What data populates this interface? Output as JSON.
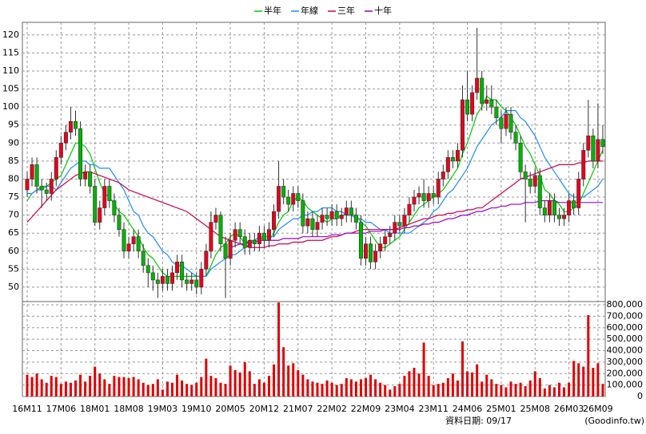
{
  "chart_data": {
    "type": "candlestick",
    "categories": [
      "16M11",
      null,
      null,
      null,
      null,
      null,
      null,
      "17M06",
      null,
      null,
      null,
      null,
      null,
      null,
      "18M01",
      null,
      null,
      null,
      null,
      null,
      null,
      "18M08",
      null,
      null,
      null,
      null,
      null,
      null,
      "19M03",
      null,
      null,
      null,
      null,
      null,
      null,
      "19M10",
      null,
      null,
      null,
      null,
      null,
      null,
      "20M05",
      null,
      null,
      null,
      null,
      null,
      null,
      "20M12",
      null,
      null,
      null,
      null,
      null,
      null,
      "21M07",
      null,
      null,
      null,
      null,
      null,
      null,
      "22M02",
      null,
      null,
      null,
      null,
      null,
      null,
      "22M09",
      null,
      null,
      null,
      null,
      null,
      null,
      "23M04",
      null,
      null,
      null,
      null,
      null,
      null,
      "23M11",
      null,
      null,
      null,
      null,
      null,
      null,
      "24M06",
      null,
      null,
      null,
      null,
      null,
      null,
      "25M01",
      null,
      null,
      null,
      null,
      null,
      null,
      "25M08",
      null,
      null,
      null,
      null,
      null,
      null,
      "26M03",
      null,
      null,
      null,
      null,
      null,
      "26M09",
      null
    ],
    "open": [
      77,
      80,
      84,
      78,
      77,
      76,
      80,
      86,
      90,
      93,
      96,
      94,
      80,
      82,
      78,
      68,
      72,
      78,
      74,
      70,
      66,
      60,
      62,
      64,
      60,
      56,
      54,
      52,
      51,
      53,
      51,
      54,
      57,
      52,
      51,
      52,
      50,
      55,
      60,
      68,
      70,
      62,
      58,
      63,
      66,
      64,
      61,
      63,
      62,
      65,
      63,
      66,
      71,
      78,
      75,
      73,
      76,
      74,
      67,
      69,
      66,
      68,
      70,
      69,
      71,
      69,
      70,
      72,
      70,
      68,
      58,
      62,
      57,
      60,
      62,
      64,
      65,
      68,
      67,
      70,
      73,
      75,
      76,
      74,
      76,
      75,
      80,
      82,
      86,
      85,
      88,
      102,
      98,
      104,
      108,
      101,
      102,
      100,
      97,
      94,
      98,
      93,
      90,
      82,
      80,
      78,
      81,
      72,
      70,
      74,
      70,
      69,
      70,
      74,
      72,
      80,
      88,
      92,
      85,
      91
    ],
    "high": [
      82,
      86,
      86,
      80,
      79,
      82,
      88,
      92,
      95,
      100,
      99,
      96,
      84,
      84,
      80,
      74,
      80,
      80,
      76,
      72,
      68,
      64,
      66,
      66,
      62,
      58,
      56,
      54,
      55,
      55,
      56,
      59,
      59,
      54,
      54,
      54,
      57,
      62,
      71,
      72,
      71,
      64,
      65,
      68,
      68,
      66,
      65,
      65,
      67,
      67,
      68,
      73,
      85,
      80,
      77,
      78,
      78,
      76,
      71,
      71,
      70,
      72,
      72,
      73,
      73,
      72,
      74,
      74,
      72,
      70,
      64,
      64,
      62,
      64,
      66,
      67,
      70,
      70,
      72,
      75,
      77,
      78,
      80,
      78,
      78,
      82,
      84,
      88,
      88,
      90,
      106,
      110,
      106,
      122,
      110,
      106,
      106,
      102,
      99,
      100,
      100,
      95,
      92,
      84,
      82,
      83,
      83,
      74,
      76,
      76,
      72,
      72,
      76,
      76,
      82,
      90,
      102,
      94,
      101,
      95
    ],
    "low": [
      75,
      78,
      76,
      72,
      74,
      74,
      78,
      84,
      88,
      91,
      92,
      78,
      78,
      76,
      67,
      66,
      70,
      72,
      68,
      64,
      58,
      58,
      60,
      58,
      54,
      50,
      49,
      47,
      49,
      49,
      49,
      52,
      50,
      49,
      49,
      48,
      48,
      53,
      58,
      66,
      60,
      47,
      56,
      61,
      62,
      59,
      59,
      60,
      60,
      61,
      61,
      64,
      69,
      73,
      71,
      71,
      72,
      65,
      65,
      64,
      64,
      66,
      67,
      67,
      67,
      67,
      68,
      68,
      66,
      56,
      56,
      55,
      55,
      58,
      60,
      62,
      63,
      65,
      65,
      68,
      71,
      73,
      72,
      72,
      73,
      73,
      78,
      80,
      83,
      83,
      86,
      96,
      96,
      102,
      99,
      99,
      98,
      95,
      90,
      92,
      91,
      88,
      80,
      68,
      76,
      76,
      70,
      68,
      68,
      68,
      67,
      67,
      68,
      70,
      70,
      78,
      86,
      83,
      83,
      87
    ],
    "close": [
      80,
      84,
      78,
      77,
      76,
      80,
      86,
      90,
      93,
      96,
      94,
      80,
      82,
      78,
      68,
      72,
      78,
      74,
      70,
      66,
      60,
      62,
      64,
      60,
      56,
      54,
      52,
      51,
      53,
      51,
      54,
      57,
      52,
      51,
      52,
      50,
      55,
      60,
      68,
      70,
      62,
      58,
      63,
      66,
      64,
      61,
      63,
      62,
      65,
      63,
      66,
      71,
      78,
      75,
      73,
      76,
      74,
      67,
      69,
      66,
      68,
      70,
      69,
      71,
      69,
      70,
      72,
      70,
      68,
      58,
      62,
      57,
      60,
      62,
      64,
      65,
      68,
      67,
      70,
      73,
      75,
      76,
      74,
      76,
      75,
      80,
      82,
      86,
      85,
      88,
      102,
      98,
      104,
      108,
      101,
      102,
      100,
      97,
      94,
      98,
      93,
      90,
      82,
      80,
      78,
      81,
      72,
      70,
      74,
      70,
      69,
      70,
      74,
      72,
      80,
      88,
      92,
      85,
      91,
      89
    ],
    "up_color": "#e8001c",
    "down_color": "#00b400",
    "series": [
      {
        "name": "半年",
        "color": "#00c800",
        "values": [
          74,
          76,
          77,
          78,
          78,
          79,
          80,
          81,
          84,
          87,
          90,
          90,
          89,
          87,
          83,
          79,
          76,
          75,
          73,
          71,
          70,
          68,
          66,
          64,
          61,
          59,
          58,
          56,
          54,
          53,
          53,
          53,
          53,
          53,
          53,
          53,
          53,
          53,
          56,
          59,
          61,
          62,
          64,
          65,
          64,
          62,
          63,
          63,
          64,
          63,
          63,
          65,
          68,
          70,
          71,
          74,
          75,
          74,
          72,
          71,
          70,
          69,
          68,
          69,
          69,
          70,
          70,
          70,
          70,
          68,
          67,
          65,
          63,
          61,
          61,
          62,
          63,
          64,
          66,
          68,
          70,
          72,
          73,
          74,
          75,
          76,
          77,
          79,
          81,
          83,
          87,
          90,
          94,
          98,
          100,
          103,
          102,
          102,
          100,
          99,
          97,
          95,
          92,
          89,
          87,
          84,
          81,
          77,
          76,
          74,
          73,
          71,
          71,
          72,
          73,
          76,
          79,
          82,
          85,
          88
        ]
      },
      {
        "name": "年線",
        "color": "#1e8cff",
        "values": [
          76,
          76,
          77,
          77,
          78,
          78,
          77,
          79,
          81,
          83,
          84,
          85,
          85,
          84,
          84,
          83,
          83,
          83,
          81,
          79,
          77,
          74,
          71,
          70,
          67,
          65,
          64,
          62,
          60,
          59,
          57,
          56,
          56,
          55,
          54,
          53,
          53,
          53,
          55,
          56,
          57,
          58,
          59,
          59,
          60,
          61,
          62,
          63,
          64,
          64,
          64,
          64,
          66,
          67,
          68,
          69,
          69,
          70,
          70,
          71,
          71,
          72,
          72,
          72,
          71,
          71,
          70,
          70,
          69,
          69,
          68,
          68,
          67,
          66,
          66,
          65,
          65,
          65,
          65,
          65,
          66,
          67,
          68,
          69,
          71,
          72,
          74,
          76,
          77,
          79,
          81,
          83,
          86,
          89,
          91,
          93,
          95,
          96,
          97,
          99,
          99,
          99,
          97,
          96,
          94,
          92,
          89,
          86,
          84,
          82,
          80,
          78,
          76,
          75,
          75,
          75,
          76,
          77,
          78,
          80
        ]
      },
      {
        "name": "三年",
        "color": "#d0004a",
        "values": [
          68,
          69.5,
          71,
          72.5,
          74,
          75.5,
          77,
          78,
          79,
          80,
          81,
          81.5,
          82,
          82,
          81.5,
          81,
          80.5,
          80,
          79.5,
          79,
          78,
          77,
          76.5,
          76,
          75.5,
          75,
          74.5,
          74,
          73.5,
          73,
          72.5,
          72,
          71.5,
          71,
          70,
          69,
          68,
          67,
          66,
          65,
          64,
          63.5,
          63,
          62.5,
          62,
          61.5,
          61,
          61,
          61,
          61,
          61.5,
          61.5,
          62,
          62,
          62,
          62.5,
          62.5,
          62.5,
          63,
          63,
          63,
          63,
          63.5,
          64,
          64,
          64.5,
          65,
          65,
          65.5,
          66,
          66,
          66,
          66,
          66,
          66,
          66,
          66,
          66.5,
          67,
          67.5,
          68,
          68.5,
          69,
          69,
          69.5,
          70,
          70,
          70.5,
          70.5,
          71,
          71,
          71.5,
          71.5,
          72,
          72,
          73,
          74,
          75,
          76,
          77,
          78,
          79,
          80,
          80.5,
          81,
          81.5,
          82,
          82.5,
          83,
          83.5,
          84,
          84,
          84,
          84,
          84.5,
          84.5,
          85,
          85,
          85,
          85
        ]
      },
      {
        "name": "十年",
        "color": "#9900cc",
        "values": [
          null,
          null,
          null,
          null,
          null,
          null,
          null,
          null,
          null,
          null,
          null,
          null,
          null,
          null,
          null,
          null,
          null,
          null,
          null,
          null,
          null,
          null,
          null,
          null,
          null,
          null,
          null,
          null,
          null,
          null,
          null,
          null,
          null,
          null,
          null,
          null,
          null,
          null,
          null,
          null,
          null,
          null,
          61,
          61.5,
          62,
          62,
          62.5,
          62.5,
          63,
          63,
          63,
          63,
          63,
          63.5,
          63.5,
          63.5,
          63.5,
          64,
          64,
          64,
          64,
          64,
          64,
          64.5,
          64.5,
          64.5,
          65,
          65,
          65,
          65,
          65,
          65.5,
          65.5,
          65.5,
          66,
          66,
          66,
          66,
          66.5,
          66.5,
          67,
          67,
          67.5,
          67.5,
          68,
          68,
          68.5,
          69,
          69,
          69.5,
          70,
          70,
          70.5,
          71,
          71,
          71.5,
          72,
          72,
          72.5,
          72.5,
          73,
          73,
          73,
          73.5,
          73.5,
          73.5,
          74,
          74,
          74,
          74,
          73.5,
          73.5,
          73.5,
          73.5,
          73.5,
          73.5,
          73.5,
          73.5,
          73.5,
          73.5
        ]
      }
    ],
    "ylim": [
      46,
      123.5
    ],
    "yticks": [
      50,
      55,
      60,
      65,
      70,
      75,
      80,
      85,
      90,
      95,
      100,
      105,
      110,
      115,
      120
    ],
    "volume": {
      "color": "#e00000",
      "values": [
        190000,
        170000,
        200000,
        150000,
        120000,
        180000,
        170000,
        110000,
        130000,
        120000,
        140000,
        190000,
        130000,
        180000,
        260000,
        200000,
        150000,
        110000,
        180000,
        170000,
        170000,
        160000,
        170000,
        150000,
        120000,
        100000,
        110000,
        150000,
        60000,
        130000,
        120000,
        190000,
        140000,
        110000,
        100000,
        120000,
        170000,
        330000,
        180000,
        160000,
        120000,
        110000,
        270000,
        230000,
        210000,
        300000,
        220000,
        110000,
        150000,
        120000,
        180000,
        280000,
        820000,
        430000,
        270000,
        290000,
        230000,
        190000,
        150000,
        130000,
        120000,
        110000,
        140000,
        120000,
        100000,
        110000,
        160000,
        150000,
        130000,
        150000,
        160000,
        190000,
        150000,
        120000,
        100000,
        60000,
        90000,
        110000,
        180000,
        220000,
        250000,
        200000,
        470000,
        180000,
        100000,
        110000,
        120000,
        160000,
        200000,
        140000,
        480000,
        220000,
        210000,
        280000,
        130000,
        190000,
        150000,
        110000,
        100000,
        80000,
        130000,
        110000,
        120000,
        90000,
        140000,
        220000,
        160000,
        70000,
        100000,
        80000,
        120000,
        80000,
        120000,
        310000,
        290000,
        260000,
        710000,
        250000,
        290000,
        110000
      ],
      "ylim": [
        0,
        828000
      ],
      "yticks": [
        0,
        {
          "value": 100000,
          "label": "100,000"
        },
        {
          "value": 200000,
          "label": "200,000"
        },
        {
          "value": 300000,
          "label": "300,000"
        },
        {
          "value": 400000,
          "label": "400,000"
        },
        {
          "value": 500000,
          "label": "500,000"
        },
        {
          "value": 600000,
          "label": "600,000"
        },
        {
          "value": 700000,
          "label": "700,000"
        },
        {
          "value": 800000,
          "label": "800,000"
        }
      ]
    },
    "grid": true,
    "footer": {
      "date": "資料日期: 09/17",
      "source": "(Goodinfo.tw)"
    }
  }
}
